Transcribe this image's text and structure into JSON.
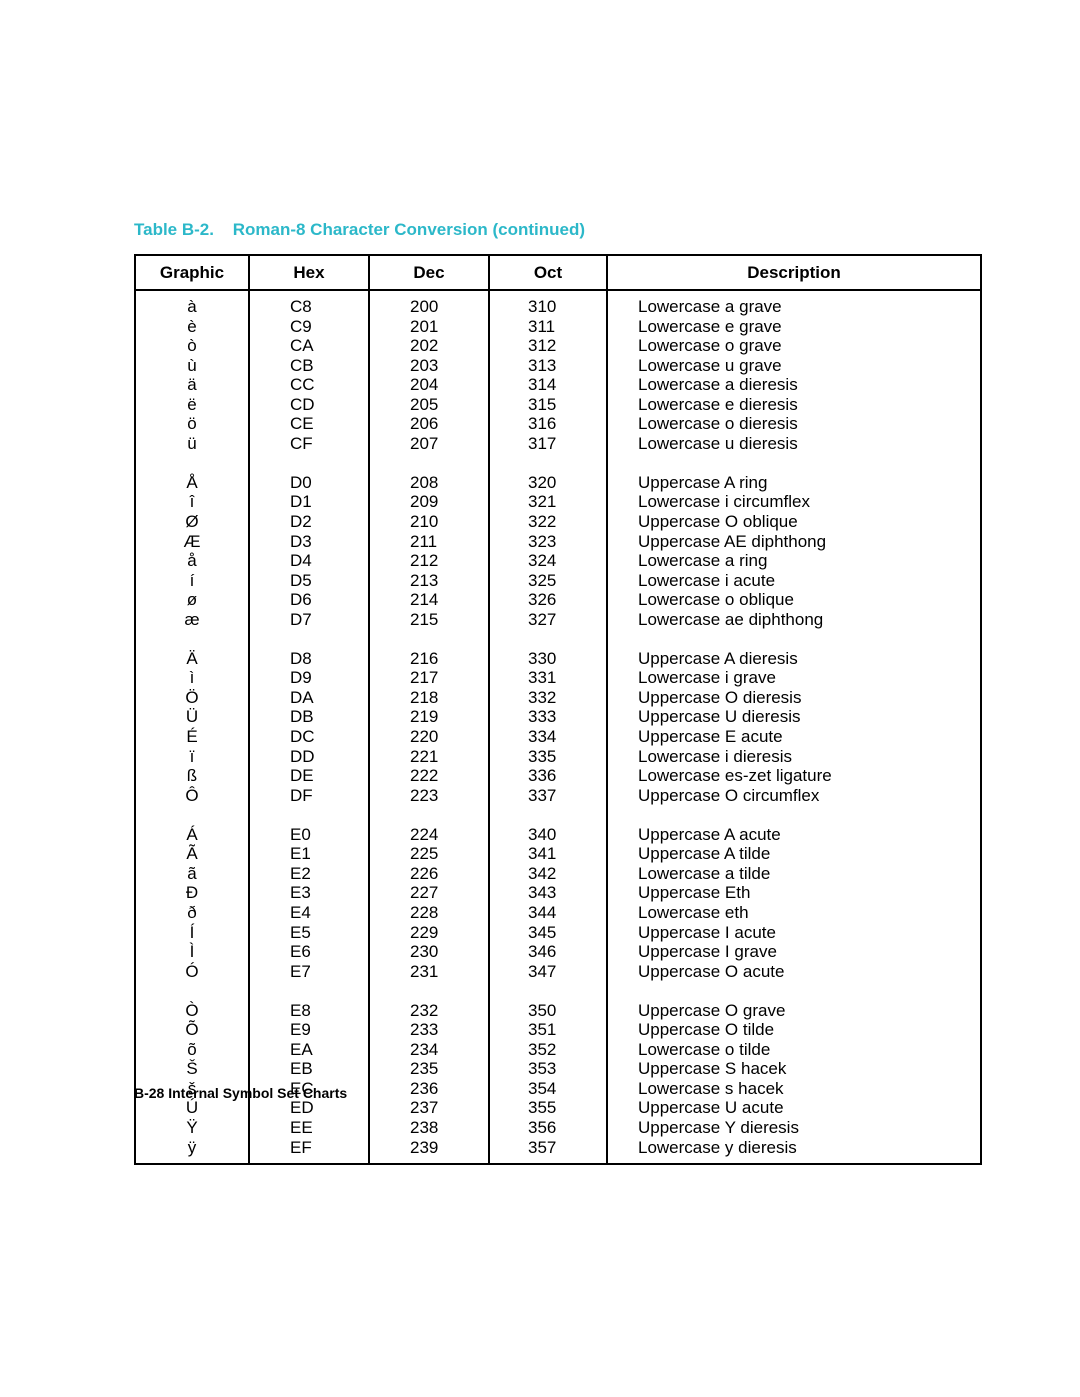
{
  "caption": {
    "id": "Table B-2.",
    "title": "Roman-8 Character Conversion (continued)"
  },
  "table": {
    "columns": [
      "Graphic",
      "Hex",
      "Dec",
      "Oct",
      "Description"
    ],
    "col_classes": [
      "col-graphic",
      "col-hex",
      "col-dec",
      "col-oct",
      "col-desc"
    ],
    "groups": [
      [
        {
          "graphic": "à",
          "hex": "C8",
          "dec": "200",
          "oct": "310",
          "desc": "Lowercase a grave"
        },
        {
          "graphic": "è",
          "hex": "C9",
          "dec": "201",
          "oct": "311",
          "desc": "Lowercase e grave"
        },
        {
          "graphic": "ò",
          "hex": "CA",
          "dec": "202",
          "oct": "312",
          "desc": "Lowercase o grave"
        },
        {
          "graphic": "ù",
          "hex": "CB",
          "dec": "203",
          "oct": "313",
          "desc": "Lowercase u grave"
        },
        {
          "graphic": "ä",
          "hex": "CC",
          "dec": "204",
          "oct": "314",
          "desc": "Lowercase a dieresis"
        },
        {
          "graphic": "ë",
          "hex": "CD",
          "dec": "205",
          "oct": "315",
          "desc": "Lowercase e dieresis"
        },
        {
          "graphic": "ö",
          "hex": "CE",
          "dec": "206",
          "oct": "316",
          "desc": "Lowercase o dieresis"
        },
        {
          "graphic": "ü",
          "hex": "CF",
          "dec": "207",
          "oct": "317",
          "desc": "Lowercase u dieresis"
        }
      ],
      [
        {
          "graphic": "Å",
          "hex": "D0",
          "dec": "208",
          "oct": "320",
          "desc": "Uppercase A ring"
        },
        {
          "graphic": "î",
          "hex": "D1",
          "dec": "209",
          "oct": "321",
          "desc": "Lowercase i circumflex"
        },
        {
          "graphic": "Ø",
          "hex": "D2",
          "dec": "210",
          "oct": "322",
          "desc": "Uppercase O oblique"
        },
        {
          "graphic": "Æ",
          "hex": "D3",
          "dec": "211",
          "oct": "323",
          "desc": "Uppercase AE diphthong"
        },
        {
          "graphic": "å",
          "hex": "D4",
          "dec": "212",
          "oct": "324",
          "desc": "Lowercase a ring"
        },
        {
          "graphic": "í",
          "hex": "D5",
          "dec": "213",
          "oct": "325",
          "desc": "Lowercase i acute"
        },
        {
          "graphic": "ø",
          "hex": "D6",
          "dec": "214",
          "oct": "326",
          "desc": "Lowercase o oblique"
        },
        {
          "graphic": "æ",
          "hex": "D7",
          "dec": "215",
          "oct": "327",
          "desc": "Lowercase ae diphthong"
        }
      ],
      [
        {
          "graphic": "Ä",
          "hex": "D8",
          "dec": "216",
          "oct": "330",
          "desc": "Uppercase A dieresis"
        },
        {
          "graphic": "ì",
          "hex": "D9",
          "dec": "217",
          "oct": "331",
          "desc": "Lowercase i grave"
        },
        {
          "graphic": "Ö",
          "hex": "DA",
          "dec": "218",
          "oct": "332",
          "desc": "Uppercase O dieresis"
        },
        {
          "graphic": "Ü",
          "hex": "DB",
          "dec": "219",
          "oct": "333",
          "desc": "Uppercase U dieresis"
        },
        {
          "graphic": "É",
          "hex": "DC",
          "dec": "220",
          "oct": "334",
          "desc": "Uppercase E acute"
        },
        {
          "graphic": "ï",
          "hex": "DD",
          "dec": "221",
          "oct": "335",
          "desc": "Lowercase i dieresis"
        },
        {
          "graphic": "ß",
          "hex": "DE",
          "dec": "222",
          "oct": "336",
          "desc": "Lowercase es-zet ligature"
        },
        {
          "graphic": "Ô",
          "hex": "DF",
          "dec": "223",
          "oct": "337",
          "desc": "Uppercase O circumflex"
        }
      ],
      [
        {
          "graphic": "Á",
          "hex": "E0",
          "dec": "224",
          "oct": "340",
          "desc": "Uppercase A acute"
        },
        {
          "graphic": "Ã",
          "hex": "E1",
          "dec": "225",
          "oct": "341",
          "desc": "Uppercase A tilde"
        },
        {
          "graphic": "ã",
          "hex": "E2",
          "dec": "226",
          "oct": "342",
          "desc": "Lowercase a tilde"
        },
        {
          "graphic": "Ð",
          "hex": "E3",
          "dec": "227",
          "oct": "343",
          "desc": "Uppercase Eth"
        },
        {
          "graphic": "ð",
          "hex": "E4",
          "dec": "228",
          "oct": "344",
          "desc": "Lowercase eth"
        },
        {
          "graphic": "Í",
          "hex": "E5",
          "dec": "229",
          "oct": "345",
          "desc": "Uppercase I acute"
        },
        {
          "graphic": "Ì",
          "hex": "E6",
          "dec": "230",
          "oct": "346",
          "desc": "Uppercase I grave"
        },
        {
          "graphic": "Ó",
          "hex": "E7",
          "dec": "231",
          "oct": "347",
          "desc": "Uppercase O acute"
        }
      ],
      [
        {
          "graphic": "Ò",
          "hex": "E8",
          "dec": "232",
          "oct": "350",
          "desc": "Uppercase O grave"
        },
        {
          "graphic": "Õ",
          "hex": "E9",
          "dec": "233",
          "oct": "351",
          "desc": "Uppercase O tilde"
        },
        {
          "graphic": "õ",
          "hex": "EA",
          "dec": "234",
          "oct": "352",
          "desc": "Lowercase o tilde"
        },
        {
          "graphic": "Š",
          "hex": "EB",
          "dec": "235",
          "oct": "353",
          "desc": "Uppercase S hacek"
        },
        {
          "graphic": "š",
          "hex": "EC",
          "dec": "236",
          "oct": "354",
          "desc": "Lowercase s hacek"
        },
        {
          "graphic": "Ú",
          "hex": "ED",
          "dec": "237",
          "oct": "355",
          "desc": "Uppercase U acute"
        },
        {
          "graphic": "Ÿ",
          "hex": "EE",
          "dec": "238",
          "oct": "356",
          "desc": "Uppercase Y dieresis"
        },
        {
          "graphic": "ÿ",
          "hex": "EF",
          "dec": "239",
          "oct": "357",
          "desc": "Lowercase y dieresis"
        }
      ]
    ]
  },
  "footer": "B-28  Internal Symbol Set Charts"
}
